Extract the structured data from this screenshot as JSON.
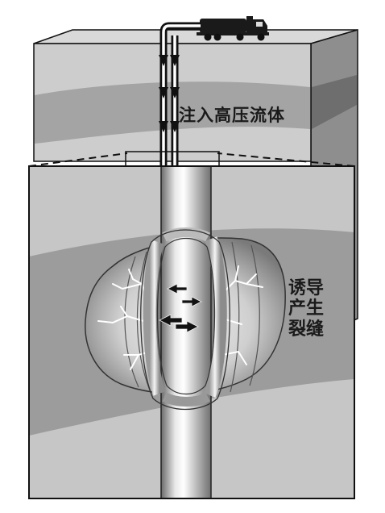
{
  "labels": {
    "inject_fluid": "注入高压流体",
    "induced_fracture_lines": [
      "诱导",
      "产生",
      "裂缝"
    ]
  },
  "icons": {
    "truck": "tanker-truck-icon",
    "flow_arrows": "down-arrow-icon",
    "pressure_arrows": "arrow-icon"
  },
  "colors": {
    "background": "#ffffff",
    "outline": "#111111",
    "block_top": "#d4d4d4",
    "block_front": "#c4c4c4",
    "block_side": "#8a8a8a",
    "rock_stratum": "#9a9a9a",
    "fracture_lines": "#ffffff"
  }
}
